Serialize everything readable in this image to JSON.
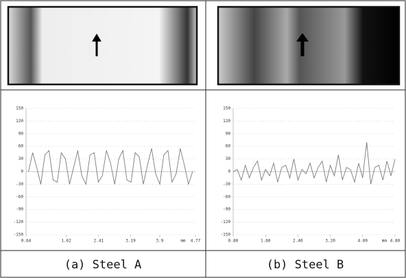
{
  "chart_data": [
    {
      "type": "line",
      "caption": "(a) Steel A",
      "x_unit_label": "mm",
      "x": [
        0.7,
        0.8,
        0.9,
        1.0,
        1.1,
        1.2,
        1.3,
        1.4,
        1.5,
        1.6,
        1.7,
        1.8,
        1.9,
        2.0,
        2.1,
        2.2,
        2.3,
        2.4,
        2.5,
        2.6,
        2.7,
        2.8,
        2.9,
        3.0,
        3.1,
        3.2,
        3.3,
        3.4,
        3.5,
        3.6,
        3.7,
        3.8,
        3.9,
        4.0,
        4.1,
        4.2,
        4.3,
        4.4,
        4.5,
        4.6,
        4.7
      ],
      "series": [
        {
          "color": "#7a7a7a",
          "values": [
            0,
            45,
            10,
            -30,
            40,
            50,
            -20,
            -25,
            45,
            30,
            -30,
            10,
            50,
            -10,
            -30,
            40,
            45,
            -25,
            -10,
            50,
            20,
            -30,
            30,
            50,
            -20,
            -25,
            45,
            35,
            -30,
            15,
            55,
            -5,
            -30,
            40,
            50,
            -25,
            -5,
            55,
            15,
            -30,
            0
          ]
        }
      ],
      "xlim": [
        0.64,
        4.77
      ],
      "xticks": [
        0.64,
        1.62,
        2.41,
        3.19,
        3.9,
        4.77
      ],
      "ylim": [
        -150,
        150
      ],
      "yticks": [
        150,
        120,
        90,
        60,
        30,
        0,
        -30,
        -60,
        -90,
        -120,
        -150
      ],
      "grid": true
    },
    {
      "type": "line",
      "caption": "(b) Steel B",
      "x_unit_label": "mm",
      "x": [
        0.8,
        0.9,
        1.0,
        1.1,
        1.2,
        1.3,
        1.4,
        1.5,
        1.6,
        1.7,
        1.8,
        1.9,
        2.0,
        2.1,
        2.2,
        2.3,
        2.4,
        2.5,
        2.6,
        2.7,
        2.8,
        2.9,
        3.0,
        3.1,
        3.2,
        3.3,
        3.4,
        3.5,
        3.6,
        3.7,
        3.8,
        3.9,
        4.0,
        4.1,
        4.2,
        4.3,
        4.4,
        4.5,
        4.6,
        4.7,
        4.8
      ],
      "series": [
        {
          "color": "#7a7a7a",
          "values": [
            0,
            5,
            -20,
            15,
            -15,
            10,
            25,
            -20,
            5,
            -10,
            20,
            -25,
            10,
            15,
            -15,
            30,
            -20,
            5,
            -5,
            20,
            -15,
            10,
            25,
            -25,
            15,
            -10,
            40,
            -20,
            10,
            5,
            -25,
            20,
            -15,
            70,
            -30,
            10,
            15,
            -20,
            25,
            -10,
            30
          ]
        }
      ],
      "xlim": [
        0.8,
        4.8
      ],
      "xticks": [
        {
          "value": 0.8,
          "label": "0.80"
        },
        {
          "value": 1.6,
          "label": "1.60"
        },
        {
          "value": 2.4,
          "label": "2.40"
        },
        {
          "value": 3.2,
          "label": "3.20"
        },
        {
          "value": 4.0,
          "label": "4.00"
        },
        {
          "value": 4.8,
          "label": "4.80"
        }
      ],
      "ylim": [
        -150,
        150
      ],
      "yticks": [
        150,
        120,
        90,
        60,
        30,
        0,
        -30,
        -60,
        -90,
        -120,
        -150
      ],
      "grid": true
    }
  ]
}
